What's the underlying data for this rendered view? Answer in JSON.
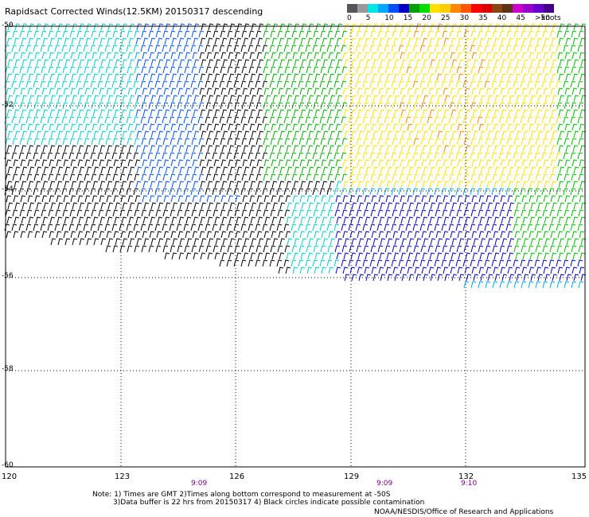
{
  "title": "Rapidsact Corrected Winds(12.5KM) 20150317 descending",
  "legend": {
    "colors": [
      "#555555",
      "#999999",
      "#00e5e5",
      "#00a8ff",
      "#0050ff",
      "#0000c8",
      "#00a000",
      "#00dd00",
      "#ffe000",
      "#ffcc00",
      "#ff8800",
      "#ff5500",
      "#ff0000",
      "#dd0000",
      "#8b4513",
      "#5c3317",
      "#cc00cc",
      "#9900cc",
      "#6600cc",
      "#440088"
    ],
    "ticks": [
      "0",
      "5",
      "10",
      "15",
      "20",
      "25",
      "30",
      "35",
      "40",
      "45",
      ">50"
    ],
    "units": "knots"
  },
  "axes": {
    "lat_labels": [
      "-50",
      "-52",
      "-54",
      "-56",
      "-58",
      "-60"
    ],
    "lon_labels": [
      "120",
      "123",
      "126",
      "129",
      "132",
      "135"
    ]
  },
  "times": [
    "9:09",
    "9:09",
    "9:10"
  ],
  "notes": {
    "line1": "Note: 1) Times are GMT  2)Times along bottom correspond to measurement at -50S",
    "line2": "3)Data buffer is 22 hrs from 20150317  4) Black circles indicate possible contamination"
  },
  "credit": "NOAA/NESDIS/Office of Research and Applications"
}
